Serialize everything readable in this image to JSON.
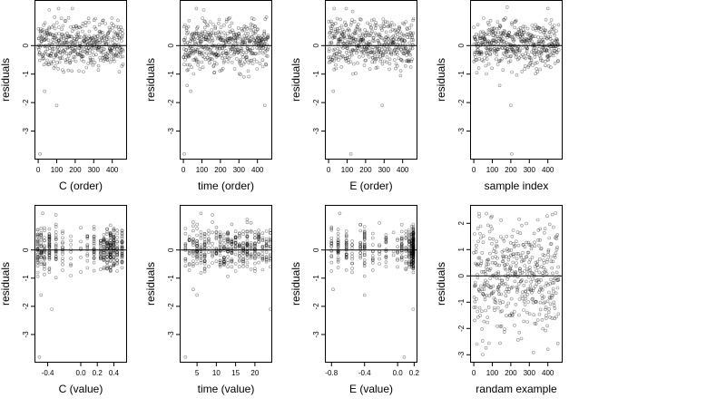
{
  "chart_data": [
    {
      "type": "scatter",
      "xlabel": "C (order)",
      "ylabel": "residuals",
      "xlim": [
        -20,
        480
      ],
      "ylim": [
        -4.0,
        1.6
      ],
      "xticks": [
        0,
        100,
        200,
        300,
        400
      ],
      "yticks": [
        -3,
        -2,
        -1,
        0
      ],
      "hline": 0,
      "n": 460,
      "generator": "order",
      "seed": 11,
      "outliers": [
        [
          10,
          -3.8
        ],
        [
          100,
          -2.1
        ],
        [
          35,
          -1.6
        ],
        [
          110,
          1.3
        ],
        [
          185,
          1.3
        ],
        [
          60,
          1.25
        ]
      ]
    },
    {
      "type": "scatter",
      "xlabel": "time (order)",
      "ylabel": "residuals",
      "xlim": [
        -20,
        480
      ],
      "ylim": [
        -4.0,
        1.6
      ],
      "xticks": [
        0,
        100,
        200,
        300,
        400
      ],
      "yticks": [
        -3,
        -2,
        -1,
        0
      ],
      "hline": 0,
      "n": 460,
      "generator": "order",
      "seed": 23,
      "outliers": [
        [
          5,
          -3.8
        ],
        [
          440,
          -2.1
        ],
        [
          40,
          -1.6
        ],
        [
          70,
          1.3
        ],
        [
          110,
          1.25
        ],
        [
          20,
          -1.4
        ]
      ]
    },
    {
      "type": "scatter",
      "xlabel": "E (order)",
      "ylabel": "residuals",
      "xlim": [
        -20,
        480
      ],
      "ylim": [
        -4.0,
        1.6
      ],
      "xticks": [
        0,
        100,
        200,
        300,
        400
      ],
      "yticks": [
        -3,
        -2,
        -1,
        0
      ],
      "hline": 0,
      "n": 460,
      "generator": "order",
      "seed": 37,
      "outliers": [
        [
          120,
          -3.8
        ],
        [
          290,
          -2.1
        ],
        [
          25,
          -1.6
        ],
        [
          30,
          1.3
        ],
        [
          95,
          1.3
        ],
        [
          130,
          1.2
        ]
      ]
    },
    {
      "type": "scatter",
      "xlabel": "sample index",
      "ylabel": "residuals",
      "xlim": [
        -20,
        480
      ],
      "ylim": [
        -4.0,
        1.6
      ],
      "xticks": [
        0,
        100,
        200,
        300,
        400
      ],
      "yticks": [
        -3,
        -2,
        -1,
        0
      ],
      "hline": 0,
      "n": 460,
      "generator": "order",
      "seed": 53,
      "outliers": [
        [
          205,
          -3.8
        ],
        [
          200,
          -2.1
        ],
        [
          140,
          -1.4
        ],
        [
          180,
          1.35
        ],
        [
          400,
          1.3
        ]
      ]
    },
    {
      "type": "scatter",
      "xlabel": "C (value)",
      "ylabel": "residuals",
      "xlim": [
        -0.56,
        0.56
      ],
      "ylim": [
        -4.0,
        1.6
      ],
      "xticks": [
        -0.4,
        0.0,
        0.2,
        0.4
      ],
      "xtick_labels": [
        "-0.4",
        "0.0",
        "0.2",
        "0.4"
      ],
      "yticks": [
        -3,
        -2,
        -1,
        0
      ],
      "hline": 0,
      "n": 420,
      "generator": "columns",
      "seed": 71,
      "columns": [
        -0.52,
        -0.48,
        -0.44,
        -0.38,
        -0.3,
        -0.22,
        -0.12,
        0.0,
        0.08,
        0.16,
        0.24,
        0.28,
        0.32,
        0.36,
        0.4,
        0.44,
        0.5
      ],
      "weights": [
        4,
        3,
        3,
        4,
        3,
        2,
        2,
        2,
        2,
        3,
        3,
        3,
        4,
        6,
        5,
        3,
        4
      ],
      "outliers": [
        [
          -0.5,
          -3.8
        ],
        [
          -0.35,
          -2.1
        ],
        [
          -0.48,
          -1.6
        ],
        [
          -0.46,
          1.3
        ],
        [
          -0.3,
          1.25
        ]
      ]
    },
    {
      "type": "scatter",
      "xlabel": "time (value)",
      "ylabel": "residuals",
      "xlim": [
        0.5,
        24.5
      ],
      "ylim": [
        -4.0,
        1.6
      ],
      "xticks": [
        5,
        10,
        15,
        20
      ],
      "yticks": [
        -3,
        -2,
        -1,
        0
      ],
      "hline": 0,
      "n": 420,
      "generator": "columns",
      "seed": 83,
      "columns": [
        2,
        3,
        4,
        5,
        6,
        7,
        8,
        9,
        10,
        11,
        12,
        13,
        14,
        15,
        16,
        17,
        18,
        19,
        20,
        21,
        22,
        23,
        24
      ],
      "weights": [
        2,
        3,
        3,
        3,
        3,
        3,
        2,
        2,
        3,
        4,
        5,
        4,
        3,
        3,
        3,
        3,
        4,
        3,
        3,
        3,
        3,
        3,
        3
      ],
      "outliers": [
        [
          2,
          -3.8
        ],
        [
          24,
          -2.1
        ],
        [
          5,
          -1.6
        ],
        [
          6,
          1.3
        ],
        [
          9,
          1.25
        ],
        [
          4,
          -1.4
        ]
      ]
    },
    {
      "type": "scatter",
      "xlabel": "E (value)",
      "ylabel": "residuals",
      "xlim": [
        -0.88,
        0.24
      ],
      "ylim": [
        -4.0,
        1.6
      ],
      "xticks": [
        -0.8,
        -0.4,
        0.0,
        0.2
      ],
      "xtick_labels": [
        "-0.8",
        "-0.4",
        "0.0",
        "0.2"
      ],
      "yticks": [
        -3,
        -2,
        -1,
        0
      ],
      "hline": 0,
      "n": 400,
      "generator": "columns",
      "seed": 97,
      "columns": [
        -0.8,
        -0.72,
        -0.62,
        -0.55,
        -0.45,
        -0.4,
        -0.3,
        -0.22,
        -0.14,
        -0.05,
        0.0,
        0.05,
        0.1,
        0.14,
        0.17,
        0.19
      ],
      "weights": [
        2,
        2,
        2,
        1,
        2,
        2,
        1,
        1,
        2,
        1,
        1,
        2,
        2,
        3,
        4,
        12
      ],
      "outliers": [
        [
          0.08,
          -3.8
        ],
        [
          0.19,
          -2.1
        ],
        [
          -0.78,
          -1.4
        ],
        [
          -0.7,
          1.3
        ],
        [
          -0.4,
          -1.6
        ]
      ]
    },
    {
      "type": "scatter",
      "xlabel": "randam example",
      "ylabel": "residuals",
      "xlim": [
        -20,
        480
      ],
      "ylim": [
        -3.3,
        2.7
      ],
      "xticks": [
        0,
        100,
        200,
        300,
        400
      ],
      "yticks": [
        -3,
        -2,
        -1,
        0,
        1,
        2
      ],
      "hline": 0,
      "n": 460,
      "generator": "uniform",
      "seed": 131,
      "outliers": []
    }
  ]
}
